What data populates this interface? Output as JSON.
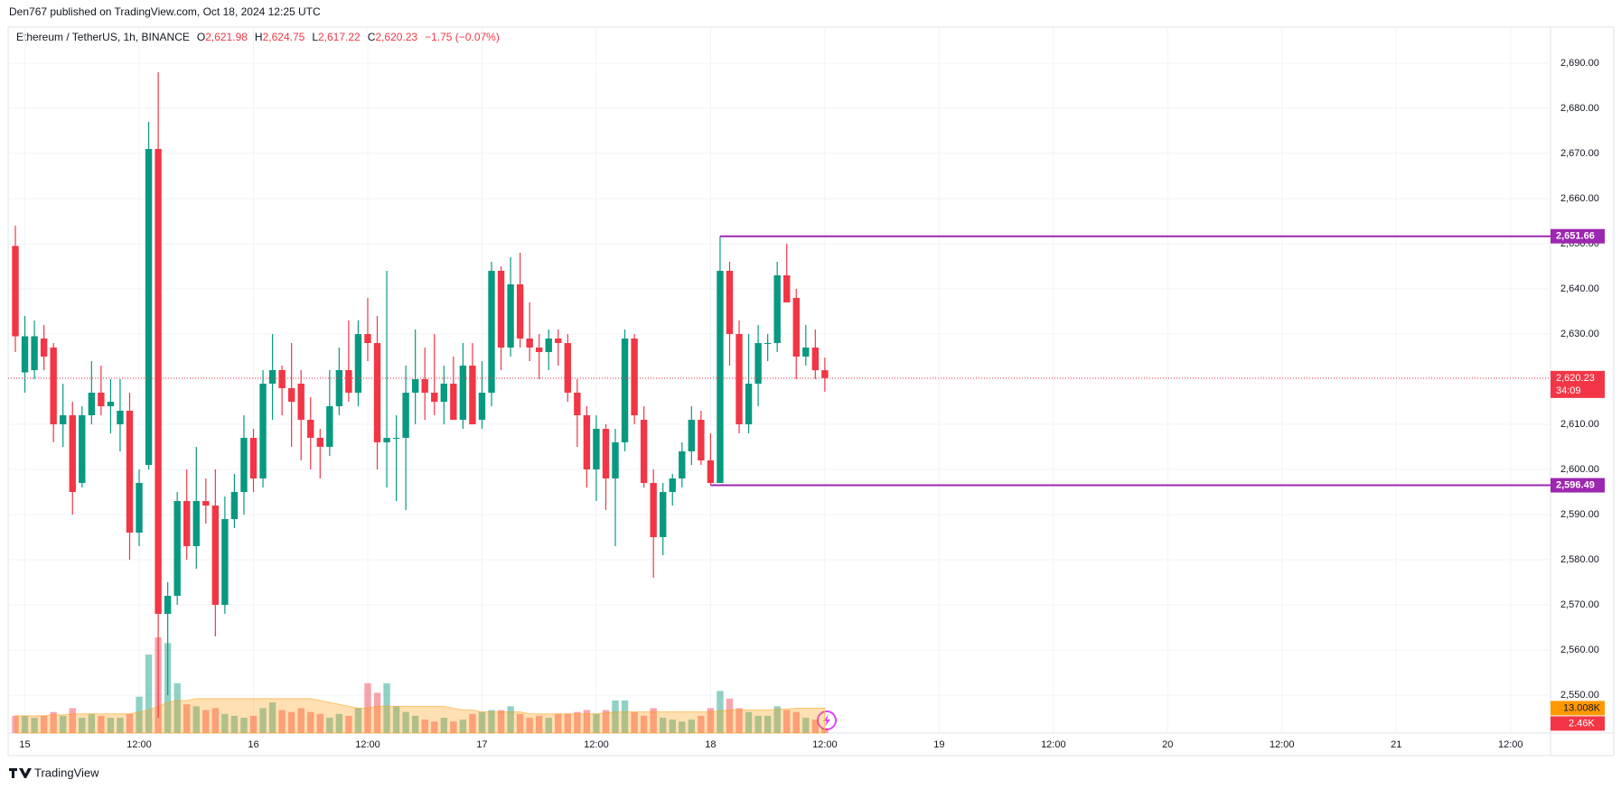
{
  "header": {
    "published": "Den767 published on TradingView.com, Oct 18, 2024 12:25 UTC",
    "footer": "TradingView"
  },
  "chart_data": {
    "type": "candlestick",
    "symbol": "Ethereum / TetherUS, 1h, BINANCE",
    "legend": [
      {
        "key": "O",
        "label": "2,621.98"
      },
      {
        "key": "H",
        "label": "2,624.75"
      },
      {
        "key": "L",
        "label": "2,617.22"
      },
      {
        "key": "C",
        "label": "2,620.23"
      }
    ],
    "change": "−1.75 (−0.07%)",
    "up_color": "#089981",
    "down_color": "#f23645",
    "grid": true,
    "open": [
      2649.5,
      2621.5,
      2622,
      2629,
      2627,
      2610,
      2612,
      2597,
      2612,
      2617,
      2614,
      2610,
      2613,
      2586,
      2601,
      2671,
      2568,
      2572,
      2593,
      2583,
      2593,
      2592,
      2570,
      2589,
      2595,
      2607,
      2598,
      2619,
      2622,
      2618,
      2619,
      2611,
      2607,
      2605,
      2614,
      2622,
      2617,
      2630,
      2628,
      2606,
      2607,
      2607,
      2617,
      2620,
      2617,
      2615,
      2619,
      2611,
      2623,
      2611,
      2617,
      2644,
      2627,
      2641,
      2629,
      2627,
      2626,
      2629,
      2628,
      2617,
      2612,
      2600,
      2609,
      2598,
      2606,
      2629,
      2611,
      2597,
      2585,
      2595,
      2598,
      2604,
      2611,
      2602,
      2597,
      2644,
      2630,
      2610,
      2619,
      2628,
      2628,
      2643,
      2638,
      2625,
      2627,
      2621.98
    ],
    "high": [
      2654,
      2634,
      2633,
      2632,
      2628,
      2619,
      2615,
      2614,
      2624,
      2623,
      2620,
      2620,
      2617,
      2600,
      2677,
      2688,
      2575,
      2595,
      2600,
      2605,
      2598,
      2600,
      2594,
      2599,
      2612,
      2609,
      2622,
      2630,
      2623,
      2628,
      2622,
      2616,
      2609,
      2622,
      2627,
      2633,
      2633,
      2638,
      2634,
      2644,
      2612,
      2623,
      2631,
      2627,
      2630,
      2623,
      2625,
      2628,
      2628,
      2624,
      2646,
      2645,
      2647,
      2648,
      2637,
      2630,
      2631,
      2631,
      2630,
      2620,
      2614,
      2612,
      2610,
      2609,
      2631,
      2630,
      2614,
      2600,
      2597,
      2599,
      2606,
      2614,
      2613,
      2608,
      2651.66,
      2646,
      2633,
      2630,
      2632,
      2630,
      2646,
      2650,
      2640,
      2632,
      2631,
      2624.75
    ],
    "low": [
      2626,
      2617,
      2620,
      2622,
      2606,
      2605,
      2590,
      2596,
      2610,
      2612,
      2608,
      2604,
      2580,
      2583,
      2600,
      2545,
      2550,
      2570,
      2580,
      2578,
      2588,
      2563,
      2568,
      2587,
      2590,
      2595,
      2596,
      2611,
      2612,
      2605,
      2602,
      2600,
      2598,
      2603,
      2612,
      2615,
      2614,
      2624,
      2600,
      2596,
      2593,
      2591,
      2610,
      2611,
      2612,
      2610,
      2612,
      2609,
      2610,
      2609,
      2614,
      2622,
      2625,
      2627,
      2624,
      2620,
      2622,
      2623,
      2615,
      2605,
      2596,
      2593,
      2591,
      2583,
      2604,
      2610,
      2596,
      2576,
      2581,
      2592,
      2596,
      2601,
      2601,
      2596.49,
      2597,
      2623,
      2608,
      2608,
      2614,
      2624,
      2626,
      2637,
      2620,
      2623,
      2620,
      2617.22
    ],
    "close": [
      2629.5,
      2629.5,
      2629.5,
      2625,
      2610,
      2612,
      2595,
      2612,
      2617,
      2614,
      2615,
      2613,
      2586,
      2597,
      2671,
      2568,
      2572,
      2593,
      2583,
      2593,
      2592,
      2570,
      2589,
      2595,
      2607,
      2598,
      2619,
      2622,
      2618,
      2615,
      2611,
      2607,
      2605,
      2614,
      2622,
      2617,
      2630,
      2628,
      2606,
      2607,
      2607,
      2617,
      2620,
      2617,
      2615,
      2619,
      2611,
      2623,
      2610,
      2617,
      2644,
      2627,
      2641,
      2629,
      2627,
      2626,
      2629,
      2628,
      2617,
      2612,
      2600,
      2609,
      2598,
      2606,
      2629,
      2612,
      2597,
      2585,
      2595,
      2598,
      2604,
      2611,
      2602,
      2597,
      2644,
      2630,
      2610,
      2619,
      2628,
      2628,
      2643,
      2637,
      2625,
      2627,
      2621.98,
      2620.23
    ],
    "volume": [
      9,
      9,
      8,
      9,
      11,
      9,
      13,
      8,
      10,
      9,
      8,
      8,
      10,
      19,
      41,
      50,
      47,
      26,
      15,
      14,
      12,
      13,
      10,
      9,
      8,
      9,
      13,
      16,
      12,
      11,
      13,
      11,
      10,
      8,
      10,
      9,
      13,
      26,
      21,
      26,
      14,
      11,
      9,
      7,
      6,
      8,
      6,
      7,
      10,
      11,
      12,
      12,
      14,
      10,
      8,
      9,
      8,
      10,
      10,
      11,
      12,
      10,
      12,
      17,
      17,
      11,
      9,
      13,
      8,
      7,
      6,
      7,
      9,
      13,
      22,
      18,
      13,
      11,
      9,
      9,
      14,
      12,
      11,
      8,
      7,
      2.46
    ],
    "volume_label": "2.46K",
    "volume_ma": [
      9,
      9,
      9,
      9,
      9.5,
      9.5,
      10,
      10,
      10,
      10,
      10,
      10,
      10,
      11,
      12,
      14,
      16,
      17,
      17,
      18,
      18,
      18,
      18,
      18,
      18,
      18,
      18,
      18,
      18,
      18,
      18,
      18,
      17,
      16,
      15,
      14,
      13,
      13,
      14,
      14,
      14,
      14,
      14,
      14,
      14,
      14,
      13,
      12,
      12,
      11,
      11,
      11,
      11,
      11,
      10,
      10,
      10,
      10,
      10,
      10,
      10,
      10,
      10.5,
      11,
      11,
      11,
      11,
      11,
      11,
      11,
      11,
      11,
      11,
      11,
      11.5,
      12,
      12,
      12,
      12,
      12,
      12.5,
      12.5,
      13,
      13,
      13,
      13.008
    ],
    "volume_ma_label": "13.008K",
    "volume_ma_color": "#ff9800",
    "volume_ylim": [
      0,
      100
    ],
    "last_price": {
      "value": 2620.23,
      "label": "2,620.23",
      "countdown": "34:09"
    },
    "price_lines": [
      {
        "value": 2651.66,
        "label": "2,651.66"
      },
      {
        "value": 2596.49,
        "label": "2,596.49"
      }
    ],
    "price_line_color": "#9c27b0",
    "xlim": [
      -0.76,
      161.2
    ],
    "xticks": [
      {
        "value": 1,
        "label": "15"
      },
      {
        "value": 13,
        "label": "12:00"
      },
      {
        "value": 25,
        "label": "16"
      },
      {
        "value": 37,
        "label": "12:00"
      },
      {
        "value": 49,
        "label": "17"
      },
      {
        "value": 61,
        "label": "12:00"
      },
      {
        "value": 73,
        "label": "18"
      },
      {
        "value": 85,
        "label": "12:00"
      },
      {
        "value": 97,
        "label": "19"
      },
      {
        "value": 109,
        "label": "12:00"
      },
      {
        "value": 121,
        "label": "20"
      },
      {
        "value": 133,
        "label": "12:00"
      },
      {
        "value": 145,
        "label": "21"
      },
      {
        "value": 157,
        "label": "12:00"
      }
    ],
    "ylim": [
      2541.6,
      2698
    ],
    "yticks": [
      {
        "value": 2550,
        "label": "2,550.00"
      },
      {
        "value": 2560,
        "label": "2,560.00"
      },
      {
        "value": 2570,
        "label": "2,570.00"
      },
      {
        "value": 2580,
        "label": "2,580.00"
      },
      {
        "value": 2590,
        "label": "2,590.00"
      },
      {
        "value": 2600,
        "label": "2,600.00"
      },
      {
        "value": 2610,
        "label": "2,610.00"
      },
      {
        "value": 2620,
        "label": "2,620.00"
      },
      {
        "value": 2630,
        "label": "2,630.00"
      },
      {
        "value": 2640,
        "label": "2,640.00"
      },
      {
        "value": 2650,
        "label": "2,650.00"
      },
      {
        "value": 2660,
        "label": "2,660.00"
      },
      {
        "value": 2670,
        "label": "2,670.00"
      },
      {
        "value": 2680,
        "label": "2,680.00"
      },
      {
        "value": 2690,
        "label": "2,690.00"
      }
    ]
  }
}
